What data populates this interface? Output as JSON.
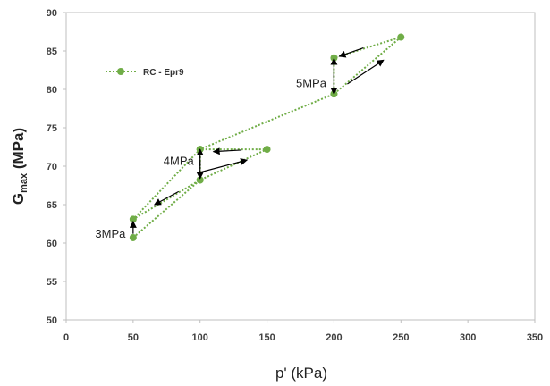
{
  "chart_data": {
    "type": "scatter",
    "xlabel": "p' (kPa)",
    "ylabel_main": "G",
    "ylabel_sub": "max",
    "ylabel_unit": " (MPa)",
    "xlim": [
      0,
      350
    ],
    "ylim": [
      50,
      90
    ],
    "x_ticks": [
      0,
      50,
      100,
      150,
      200,
      250,
      300,
      350
    ],
    "y_ticks": [
      50,
      55,
      60,
      65,
      70,
      75,
      80,
      85,
      90
    ],
    "grid": false,
    "legend_position": "top-left",
    "series": [
      {
        "name": "RC - Epr9",
        "color": "#70ad47",
        "line_style": "dotted",
        "points": [
          {
            "x": 50,
            "y": 60.7
          },
          {
            "x": 100,
            "y": 68.2
          },
          {
            "x": 150,
            "y": 72.2
          },
          {
            "x": 100,
            "y": 72.2
          },
          {
            "x": 100,
            "y": 68.2
          },
          {
            "x": 50,
            "y": 63.1
          },
          {
            "x": 100,
            "y": 72.2
          },
          {
            "x": 200,
            "y": 79.4
          },
          {
            "x": 250,
            "y": 86.8
          },
          {
            "x": 200,
            "y": 84.1
          },
          {
            "x": 200,
            "y": 79.4
          }
        ]
      }
    ],
    "annotations": [
      {
        "text": "3MPa",
        "x": 33,
        "y": 60.7
      },
      {
        "text": "4MPa",
        "x": 84,
        "y": 70.2
      },
      {
        "text": "5MPa",
        "x": 183,
        "y": 80.3
      }
    ],
    "arrows": [
      {
        "from": [
          50,
          61.2
        ],
        "to": [
          50,
          62.8
        ]
      },
      {
        "from": [
          100,
          69.2
        ],
        "to": [
          135,
          70.8
        ]
      },
      {
        "from": [
          131,
          72.1
        ],
        "to": [
          110,
          71.9
        ]
      },
      {
        "from": [
          100,
          70.0
        ],
        "to": [
          100,
          72.2
        ]
      },
      {
        "from": [
          100,
          70.6
        ],
        "to": [
          100,
          68.4
        ]
      },
      {
        "from": [
          84,
          66.7
        ],
        "to": [
          66,
          65.0
        ]
      },
      {
        "from": [
          200,
          81.5
        ],
        "to": [
          200,
          84.0
        ]
      },
      {
        "from": [
          200,
          82.0
        ],
        "to": [
          200,
          79.4
        ]
      },
      {
        "from": [
          210,
          80.7
        ],
        "to": [
          237,
          83.8
        ]
      },
      {
        "from": [
          222,
          85.4
        ],
        "to": [
          204,
          84.3
        ]
      }
    ]
  }
}
